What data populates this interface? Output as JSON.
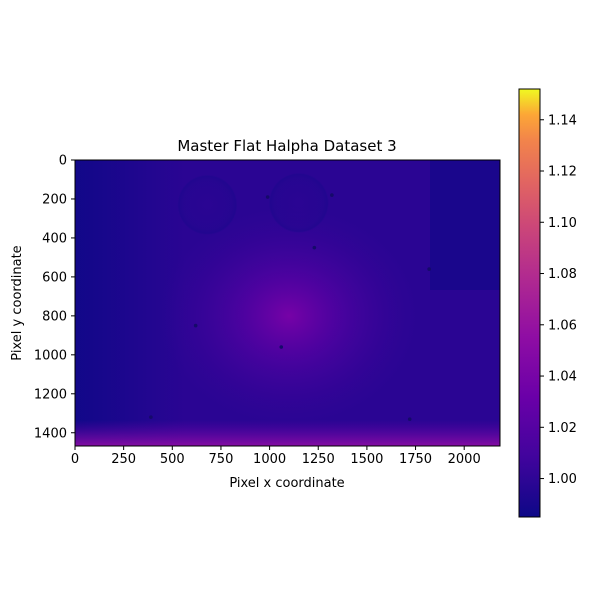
{
  "chart_data": {
    "type": "heatmap",
    "title": "Master Flat Halpha Dataset 3",
    "xlabel": "Pixel x coordinate",
    "ylabel": "Pixel y coordinate",
    "xlim": [
      0,
      2184
    ],
    "ylim": [
      1468,
      0
    ],
    "xticks": [
      0,
      250,
      500,
      750,
      1000,
      1250,
      1500,
      1750,
      2000
    ],
    "yticks": [
      0,
      200,
      400,
      600,
      800,
      1000,
      1200,
      1400
    ],
    "colormap": "plasma",
    "colorbar": {
      "min": 0.985,
      "max": 1.152,
      "ticks": [
        "1.00",
        "1.02",
        "1.04",
        "1.06",
        "1.08",
        "1.10",
        "1.12",
        "1.14"
      ]
    },
    "image_description_values": {
      "background_level": 1.0,
      "central_hotspot": {
        "x": 1100,
        "y": 800,
        "value": 1.025
      },
      "bottom_edge_row_value": 1.04,
      "dust_rings": [
        {
          "x": 680,
          "y": 230,
          "value": 0.995
        },
        {
          "x": 1150,
          "y": 220,
          "value": 0.995
        }
      ],
      "dark_specks": [
        {
          "x": 990,
          "y": 190
        },
        {
          "x": 1320,
          "y": 180
        },
        {
          "x": 1230,
          "y": 450
        },
        {
          "x": 620,
          "y": 850
        },
        {
          "x": 1060,
          "y": 960
        },
        {
          "x": 390,
          "y": 1320
        },
        {
          "x": 1820,
          "y": 560
        },
        {
          "x": 1720,
          "y": 1330
        }
      ]
    }
  }
}
